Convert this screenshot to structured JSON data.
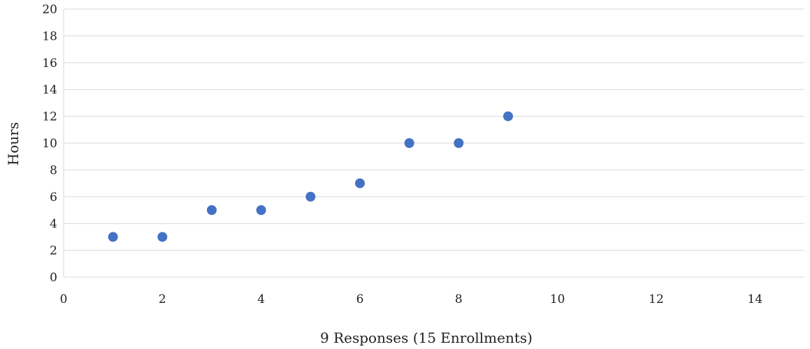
{
  "chart_data": {
    "type": "scatter",
    "title": "",
    "xlabel": "9 Responses (15 Enrollments)",
    "ylabel": "Hours",
    "xlim": [
      0,
      15
    ],
    "ylim": [
      0,
      20
    ],
    "x_ticks": [
      0,
      2,
      4,
      6,
      8,
      10,
      12,
      14
    ],
    "y_ticks": [
      0,
      2,
      4,
      6,
      8,
      10,
      12,
      14,
      16,
      18,
      20
    ],
    "grid": "horizontal",
    "legend": "none",
    "series": [
      {
        "color": "#4472c4",
        "points": [
          {
            "x": 1,
            "y": 3
          },
          {
            "x": 2,
            "y": 3
          },
          {
            "x": 3,
            "y": 5
          },
          {
            "x": 4,
            "y": 5
          },
          {
            "x": 5,
            "y": 6
          },
          {
            "x": 6,
            "y": 7
          },
          {
            "x": 7,
            "y": 10
          },
          {
            "x": 8,
            "y": 10
          },
          {
            "x": 9,
            "y": 12
          }
        ]
      }
    ]
  }
}
